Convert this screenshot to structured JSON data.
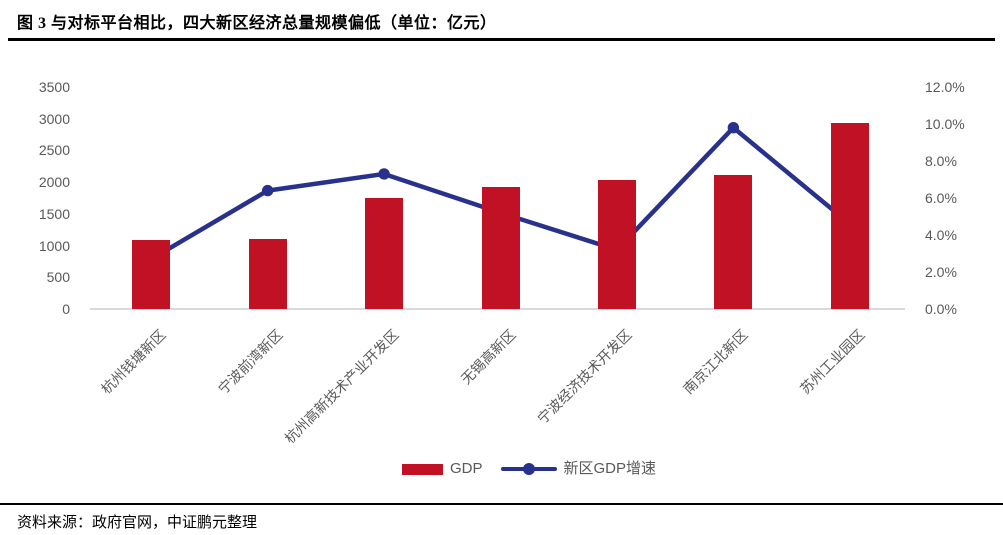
{
  "page": {
    "title": "图 3 与对标平台相比，四大新区经济总量规模偏低（单位：亿元）",
    "source_note": "资料来源：政府官网，中证鹏元整理"
  },
  "colors": {
    "bar_red": "#C11124",
    "line_blue": "#28318C",
    "axis_text": "#595959",
    "baseline_gray": "#D9D9D9",
    "title_black": "#000000"
  },
  "chart_data": {
    "type": "combo: bar + line, dual axis",
    "title": "图 3 与对标平台相比，四大新区经济总量规模偏低（单位：亿元）",
    "unit": "亿元",
    "categories": [
      "杭州钱塘新区",
      "宁波前湾新区",
      "杭州高新技术产业开发区",
      "无锡高新区",
      "宁波经济技术开发区",
      "南京江北新区",
      "苏州工业园区"
    ],
    "series": [
      {
        "name": "GDP",
        "type": "bar",
        "axis": "left",
        "values": [
          1080,
          1100,
          1750,
          1930,
          2030,
          2120,
          2930
        ]
      },
      {
        "name": "新区GDP增速",
        "type": "line",
        "axis": "right",
        "values_percent": [
          2.7,
          6.4,
          7.3,
          5.2,
          3.2,
          9.8,
          4.6
        ]
      }
    ],
    "left_axis": {
      "min": 0,
      "max": 3500,
      "step": 500,
      "tick_labels": [
        "3500",
        "3000",
        "2500",
        "2000",
        "1500",
        "1000",
        "500",
        "0"
      ]
    },
    "right_axis": {
      "min": 0,
      "max": 0.12,
      "step": 0.02,
      "tick_labels": [
        "12.0%",
        "10.0%",
        "8.0%",
        "6.0%",
        "4.0%",
        "2.0%",
        "0.0%"
      ]
    },
    "legend": {
      "position": "bottom-center",
      "items": [
        {
          "label": "GDP",
          "swatch": "red-bar"
        },
        {
          "label": "新区GDP增速",
          "swatch": "blue-line-with-dot"
        }
      ]
    },
    "grid": "off (x-axis baseline only)"
  }
}
